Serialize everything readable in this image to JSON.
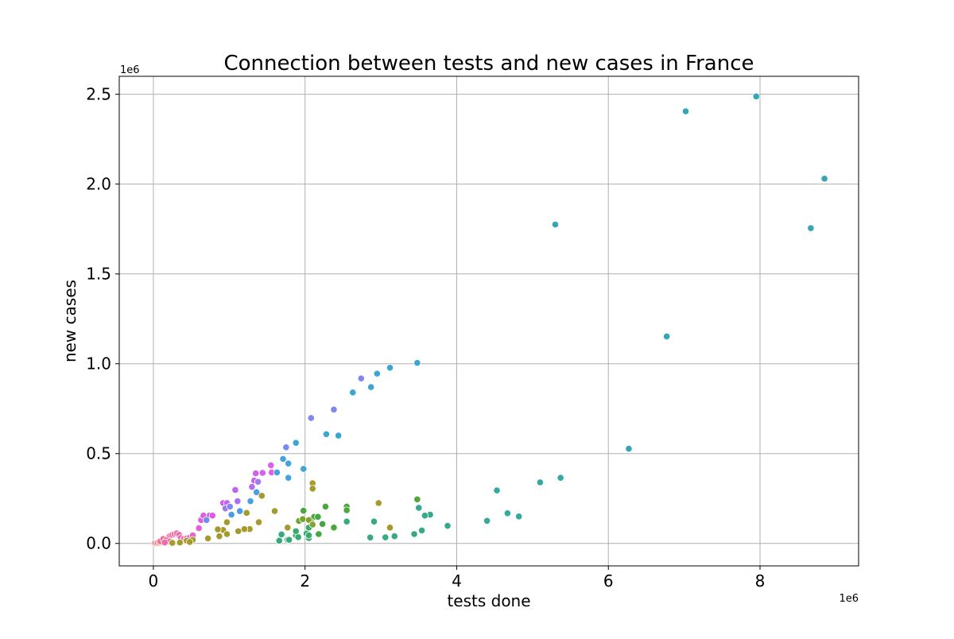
{
  "chart_data": {
    "type": "scatter",
    "title": "Connection between tests and new cases in France",
    "xlabel": "tests done",
    "ylabel": "new cases",
    "x_offset_label": "1e6",
    "y_offset_label": "1e6",
    "xlim": [
      -0.45,
      9.3
    ],
    "ylim": [
      -0.125,
      2.6
    ],
    "xticks": [
      0,
      2,
      4,
      6,
      8
    ],
    "yticks": [
      0.0,
      0.5,
      1.0,
      1.5,
      2.0,
      2.5
    ],
    "xtick_labels": [
      "0",
      "2",
      "4",
      "6",
      "8"
    ],
    "ytick_labels": [
      "0.0",
      "0.5",
      "1.0",
      "1.5",
      "2.0",
      "2.5"
    ],
    "grid": true,
    "legend": "none",
    "units": "millions",
    "points": [
      {
        "x": 0.02,
        "y": 0.002,
        "color": "#f5737c"
      },
      {
        "x": 0.04,
        "y": 0.001,
        "color": "#f5737c"
      },
      {
        "x": 0.06,
        "y": 0.003,
        "color": "#f5737c"
      },
      {
        "x": 0.08,
        "y": 0.002,
        "color": "#f6747f"
      },
      {
        "x": 0.1,
        "y": 0.004,
        "color": "#f6747f"
      },
      {
        "x": 0.12,
        "y": 0.006,
        "color": "#f77188"
      },
      {
        "x": 0.14,
        "y": 0.012,
        "color": "#f77188"
      },
      {
        "x": 0.16,
        "y": 0.02,
        "color": "#f56f91"
      },
      {
        "x": 0.18,
        "y": 0.028,
        "color": "#f56f91"
      },
      {
        "x": 0.2,
        "y": 0.035,
        "color": "#f56e9a"
      },
      {
        "x": 0.22,
        "y": 0.042,
        "color": "#f56e9a"
      },
      {
        "x": 0.25,
        "y": 0.048,
        "color": "#f36ca2"
      },
      {
        "x": 0.28,
        "y": 0.052,
        "color": "#f36ca2"
      },
      {
        "x": 0.31,
        "y": 0.056,
        "color": "#f06aab"
      },
      {
        "x": 0.34,
        "y": 0.048,
        "color": "#f06aab"
      },
      {
        "x": 0.36,
        "y": 0.03,
        "color": "#ee69b4"
      },
      {
        "x": 0.4,
        "y": 0.025,
        "color": "#ee69b4"
      },
      {
        "x": 0.44,
        "y": 0.028,
        "color": "#ea67bf"
      },
      {
        "x": 0.48,
        "y": 0.032,
        "color": "#ea67bf"
      },
      {
        "x": 0.52,
        "y": 0.045,
        "color": "#e666c9"
      },
      {
        "x": 0.09,
        "y": 0.012,
        "color": "#f77188"
      },
      {
        "x": 0.13,
        "y": 0.025,
        "color": "#f56f91"
      },
      {
        "x": 0.17,
        "y": 0.018,
        "color": "#f56e9a"
      },
      {
        "x": 0.21,
        "y": 0.01,
        "color": "#f36ca2"
      },
      {
        "x": 0.15,
        "y": 0.005,
        "color": "#f06aab"
      },
      {
        "x": 0.6,
        "y": 0.085,
        "color": "#e35fd8"
      },
      {
        "x": 0.63,
        "y": 0.13,
        "color": "#dd5fe0"
      },
      {
        "x": 0.66,
        "y": 0.155,
        "color": "#dd5fe0"
      },
      {
        "x": 0.74,
        "y": 0.155,
        "color": "#d65ee8"
      },
      {
        "x": 0.78,
        "y": 0.155,
        "color": "#d65ee8"
      },
      {
        "x": 0.92,
        "y": 0.225,
        "color": "#cc5ff0"
      },
      {
        "x": 0.97,
        "y": 0.225,
        "color": "#c462f2"
      },
      {
        "x": 1.08,
        "y": 0.298,
        "color": "#bb66f3"
      },
      {
        "x": 1.35,
        "y": 0.39,
        "color": "#d060ee"
      },
      {
        "x": 1.44,
        "y": 0.393,
        "color": "#d860ec"
      },
      {
        "x": 1.55,
        "y": 0.435,
        "color": "#e060ea"
      },
      {
        "x": 1.56,
        "y": 0.395,
        "color": "#e060ea"
      },
      {
        "x": 1.33,
        "y": 0.35,
        "color": "#c962f0"
      },
      {
        "x": 1.3,
        "y": 0.315,
        "color": "#b86af2"
      },
      {
        "x": 1.11,
        "y": 0.235,
        "color": "#ab6ff3"
      },
      {
        "x": 0.95,
        "y": 0.195,
        "color": "#a275f3"
      },
      {
        "x": 1.38,
        "y": 0.343,
        "color": "#9d7bf3"
      },
      {
        "x": 0.7,
        "y": 0.13,
        "color": "#6f8ef3"
      },
      {
        "x": 1.01,
        "y": 0.205,
        "color": "#7d88f3"
      },
      {
        "x": 1.03,
        "y": 0.16,
        "color": "#4a9be8"
      },
      {
        "x": 1.14,
        "y": 0.18,
        "color": "#4a9be8"
      },
      {
        "x": 1.28,
        "y": 0.235,
        "color": "#47a0e2"
      },
      {
        "x": 1.36,
        "y": 0.285,
        "color": "#47a0e2"
      },
      {
        "x": 1.63,
        "y": 0.395,
        "color": "#44a3dd"
      },
      {
        "x": 1.71,
        "y": 0.47,
        "color": "#44a3dd"
      },
      {
        "x": 1.75,
        "y": 0.535,
        "color": "#7d88f3"
      },
      {
        "x": 1.78,
        "y": 0.445,
        "color": "#44a3dd"
      },
      {
        "x": 1.78,
        "y": 0.365,
        "color": "#44a3dd"
      },
      {
        "x": 1.88,
        "y": 0.56,
        "color": "#3ea5d8"
      },
      {
        "x": 1.98,
        "y": 0.415,
        "color": "#3ea5d8"
      },
      {
        "x": 2.08,
        "y": 0.698,
        "color": "#7d88f3"
      },
      {
        "x": 2.28,
        "y": 0.608,
        "color": "#3aa7d3"
      },
      {
        "x": 2.38,
        "y": 0.745,
        "color": "#7d88f3"
      },
      {
        "x": 2.44,
        "y": 0.6,
        "color": "#3aa7d3"
      },
      {
        "x": 2.63,
        "y": 0.84,
        "color": "#3aa7d3"
      },
      {
        "x": 2.74,
        "y": 0.918,
        "color": "#7d88f3"
      },
      {
        "x": 2.87,
        "y": 0.87,
        "color": "#3aa7d3"
      },
      {
        "x": 2.95,
        "y": 0.945,
        "color": "#3aa7d3"
      },
      {
        "x": 3.12,
        "y": 0.978,
        "color": "#3aa7d3"
      },
      {
        "x": 3.48,
        "y": 1.005,
        "color": "#3aa7d3"
      },
      {
        "x": 5.3,
        "y": 1.775,
        "color": "#34a6b6"
      },
      {
        "x": 7.02,
        "y": 2.405,
        "color": "#34a6b6"
      },
      {
        "x": 7.95,
        "y": 2.488,
        "color": "#34a6b6"
      },
      {
        "x": 8.85,
        "y": 2.03,
        "color": "#34a6b6"
      },
      {
        "x": 8.67,
        "y": 1.755,
        "color": "#34a6b6"
      },
      {
        "x": 6.77,
        "y": 1.152,
        "color": "#34a6b6"
      },
      {
        "x": 6.27,
        "y": 0.527,
        "color": "#34a6b6"
      },
      {
        "x": 5.37,
        "y": 0.365,
        "color": "#34a8a5"
      },
      {
        "x": 5.1,
        "y": 0.34,
        "color": "#34a8a5"
      },
      {
        "x": 4.53,
        "y": 0.295,
        "color": "#34a8a5"
      },
      {
        "x": 4.67,
        "y": 0.168,
        "color": "#35a99a"
      },
      {
        "x": 4.82,
        "y": 0.15,
        "color": "#35a99a"
      },
      {
        "x": 4.4,
        "y": 0.126,
        "color": "#35a99a"
      },
      {
        "x": 3.88,
        "y": 0.098,
        "color": "#35a98f"
      },
      {
        "x": 3.65,
        "y": 0.16,
        "color": "#35a98f"
      },
      {
        "x": 3.58,
        "y": 0.155,
        "color": "#35a98f"
      },
      {
        "x": 3.5,
        "y": 0.198,
        "color": "#35a98f"
      },
      {
        "x": 3.54,
        "y": 0.072,
        "color": "#36aa85"
      },
      {
        "x": 3.44,
        "y": 0.052,
        "color": "#36aa85"
      },
      {
        "x": 3.18,
        "y": 0.04,
        "color": "#36aa85"
      },
      {
        "x": 3.06,
        "y": 0.034,
        "color": "#36aa85"
      },
      {
        "x": 2.86,
        "y": 0.033,
        "color": "#36aa85"
      },
      {
        "x": 2.91,
        "y": 0.122,
        "color": "#36aa7b"
      },
      {
        "x": 2.55,
        "y": 0.122,
        "color": "#36aa7b"
      },
      {
        "x": 1.66,
        "y": 0.015,
        "color": "#36aa7b"
      },
      {
        "x": 1.69,
        "y": 0.05,
        "color": "#36aa7b"
      },
      {
        "x": 1.77,
        "y": 0.02,
        "color": "#36aa7b"
      },
      {
        "x": 1.79,
        "y": 0.02,
        "color": "#36aa7b"
      },
      {
        "x": 1.88,
        "y": 0.045,
        "color": "#38a96f"
      },
      {
        "x": 1.91,
        "y": 0.035,
        "color": "#38a96f"
      },
      {
        "x": 1.88,
        "y": 0.068,
        "color": "#38a96f"
      },
      {
        "x": 2.02,
        "y": 0.055,
        "color": "#38a96f"
      },
      {
        "x": 2.05,
        "y": 0.03,
        "color": "#38a96f"
      },
      {
        "x": 2.05,
        "y": 0.045,
        "color": "#38a96f"
      },
      {
        "x": 2.05,
        "y": 0.088,
        "color": "#38a96f"
      },
      {
        "x": 1.98,
        "y": 0.182,
        "color": "#44a83e"
      },
      {
        "x": 2.12,
        "y": 0.148,
        "color": "#44a83e"
      },
      {
        "x": 2.17,
        "y": 0.148,
        "color": "#44a83e"
      },
      {
        "x": 2.23,
        "y": 0.108,
        "color": "#44a83e"
      },
      {
        "x": 2.18,
        "y": 0.052,
        "color": "#44a83e"
      },
      {
        "x": 2.08,
        "y": 0.12,
        "color": "#44a83e"
      },
      {
        "x": 2.27,
        "y": 0.205,
        "color": "#4aa73a"
      },
      {
        "x": 2.38,
        "y": 0.088,
        "color": "#4aa73a"
      },
      {
        "x": 2.55,
        "y": 0.205,
        "color": "#4aa73a"
      },
      {
        "x": 2.55,
        "y": 0.185,
        "color": "#4aa73a"
      },
      {
        "x": 3.48,
        "y": 0.245,
        "color": "#52a537"
      },
      {
        "x": 1.92,
        "y": 0.125,
        "color": "#6ea532"
      },
      {
        "x": 1.97,
        "y": 0.135,
        "color": "#7aa32f"
      },
      {
        "x": 2.05,
        "y": 0.13,
        "color": "#86a12e"
      },
      {
        "x": 2.1,
        "y": 0.105,
        "color": "#86a12e"
      },
      {
        "x": 2.1,
        "y": 0.335,
        "color": "#a59a2c"
      },
      {
        "x": 2.1,
        "y": 0.305,
        "color": "#a59a2c"
      },
      {
        "x": 2.97,
        "y": 0.225,
        "color": "#a59a2c"
      },
      {
        "x": 3.12,
        "y": 0.088,
        "color": "#a59a2c"
      },
      {
        "x": 1.43,
        "y": 0.265,
        "color": "#a59a2c"
      },
      {
        "x": 1.6,
        "y": 0.18,
        "color": "#a59a2c"
      },
      {
        "x": 1.39,
        "y": 0.118,
        "color": "#a59a2c"
      },
      {
        "x": 1.27,
        "y": 0.08,
        "color": "#a59a2c"
      },
      {
        "x": 1.2,
        "y": 0.08,
        "color": "#a59a2c"
      },
      {
        "x": 1.12,
        "y": 0.068,
        "color": "#a59a2c"
      },
      {
        "x": 1.23,
        "y": 0.17,
        "color": "#a59a2c"
      },
      {
        "x": 0.97,
        "y": 0.118,
        "color": "#a59a2c"
      },
      {
        "x": 0.92,
        "y": 0.075,
        "color": "#a59a2c"
      },
      {
        "x": 0.85,
        "y": 0.078,
        "color": "#a59a2c"
      },
      {
        "x": 0.97,
        "y": 0.052,
        "color": "#a59a2c"
      },
      {
        "x": 0.87,
        "y": 0.04,
        "color": "#a59a2c"
      },
      {
        "x": 0.72,
        "y": 0.028,
        "color": "#a59a2c"
      },
      {
        "x": 1.77,
        "y": 0.088,
        "color": "#a59a2c"
      },
      {
        "x": 0.52,
        "y": 0.02,
        "color": "#a59a2c"
      },
      {
        "x": 0.44,
        "y": 0.015,
        "color": "#a59a2c"
      },
      {
        "x": 0.35,
        "y": 0.005,
        "color": "#a59a2c"
      },
      {
        "x": 0.25,
        "y": 0.003,
        "color": "#a59a2c"
      },
      {
        "x": 0.48,
        "y": 0.008,
        "color": "#a59a2c"
      }
    ]
  }
}
